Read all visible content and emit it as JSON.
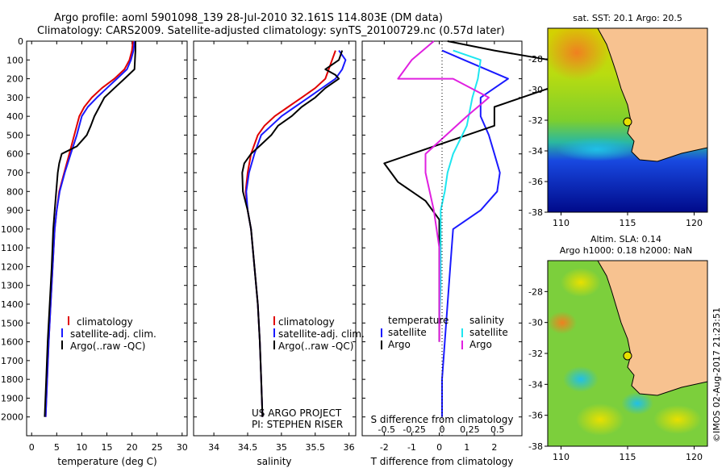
{
  "header": {
    "line1": "Argo profile: aoml 5901098_139 28-Jul-2010 32.161S 114.803E (DM data)",
    "line2": "Climatology: CARS2009. Satellite-adjusted climatology: synTS_20100729.nc (0.57d later)"
  },
  "colors": {
    "climatology": "#e00000",
    "satellite": "#1a1aff",
    "argo": "#000000",
    "sat_salinity": "#1ee6f0",
    "argo_salinity": "#e020e0",
    "land": "#f7c290"
  },
  "chart_data": [
    {
      "type": "line",
      "xlabel": "temperature (deg C)",
      "ylabel": "",
      "xlim": [
        -1,
        31
      ],
      "ylim": [
        2100,
        0
      ],
      "xticks": [
        0,
        5,
        10,
        15,
        20,
        25,
        30
      ],
      "yticks": [
        0,
        100,
        200,
        300,
        400,
        500,
        600,
        700,
        800,
        900,
        1000,
        1100,
        1200,
        1300,
        1400,
        1500,
        1600,
        1700,
        1800,
        1900,
        2000
      ],
      "legend": [
        "climatology",
        "satellite-adj. clim.",
        "Argo(..raw -QC)"
      ],
      "series": [
        {
          "name": "climatology",
          "color": "#e00000",
          "points": [
            [
              20.2,
              0
            ],
            [
              20,
              50
            ],
            [
              19.5,
              100
            ],
            [
              18.5,
              150
            ],
            [
              16.5,
              200
            ],
            [
              14,
              250
            ],
            [
              12,
              300
            ],
            [
              10.5,
              350
            ],
            [
              9.5,
              400
            ],
            [
              8.5,
              500
            ],
            [
              7.5,
              600
            ],
            [
              6.5,
              700
            ],
            [
              5.5,
              800
            ],
            [
              5,
              900
            ],
            [
              4.6,
              1000
            ],
            [
              4.2,
              1200
            ],
            [
              3.8,
              1400
            ],
            [
              3.4,
              1600
            ],
            [
              3.1,
              1800
            ],
            [
              2.8,
              2000
            ]
          ]
        },
        {
          "name": "satellite-adj. clim.",
          "color": "#1a1aff",
          "points": [
            [
              20.5,
              0
            ],
            [
              20.3,
              50
            ],
            [
              19.8,
              100
            ],
            [
              19,
              150
            ],
            [
              17,
              200
            ],
            [
              15,
              250
            ],
            [
              13,
              300
            ],
            [
              11.2,
              350
            ],
            [
              10,
              400
            ],
            [
              9,
              500
            ],
            [
              7.8,
              600
            ],
            [
              6.6,
              700
            ],
            [
              5.6,
              800
            ],
            [
              5,
              900
            ],
            [
              4.6,
              1000
            ],
            [
              4.2,
              1200
            ],
            [
              3.8,
              1400
            ],
            [
              3.4,
              1600
            ],
            [
              3.1,
              1800
            ],
            [
              2.8,
              2000
            ]
          ]
        },
        {
          "name": "Argo(..raw -QC)",
          "color": "#000000",
          "points": [
            [
              20.7,
              0
            ],
            [
              20.7,
              50
            ],
            [
              20.6,
              100
            ],
            [
              20.5,
              150
            ],
            [
              18.5,
              200
            ],
            [
              16.5,
              250
            ],
            [
              14.5,
              300
            ],
            [
              13.5,
              350
            ],
            [
              12.5,
              400
            ],
            [
              11.8,
              450
            ],
            [
              11,
              500
            ],
            [
              9,
              560
            ],
            [
              6,
              600
            ],
            [
              5.5,
              650
            ],
            [
              5.2,
              700
            ],
            [
              4.9,
              800
            ],
            [
              4.6,
              900
            ],
            [
              4.3,
              1000
            ],
            [
              4,
              1200
            ],
            [
              3.6,
              1400
            ],
            [
              3.2,
              1600
            ],
            [
              2.9,
              1800
            ],
            [
              2.6,
              2000
            ]
          ]
        }
      ]
    },
    {
      "type": "line",
      "xlabel": "salinity",
      "ylabel": "",
      "xlim": [
        33.7,
        36.1
      ],
      "ylim": [
        2100,
        0
      ],
      "xticks": [
        34,
        34.5,
        35,
        35.5,
        36
      ],
      "xticklabels": [
        "34",
        "34.5",
        "35",
        "35.5",
        "36"
      ],
      "legend": [
        "climatology",
        "satellite-adj. clim.",
        "Argo(..raw -QC)"
      ],
      "annotation": [
        "US ARGO PROJECT",
        "PI: STEPHEN RISER"
      ],
      "series": [
        {
          "name": "climatology",
          "color": "#e00000",
          "points": [
            [
              35.8,
              50
            ],
            [
              35.75,
              100
            ],
            [
              35.7,
              150
            ],
            [
              35.65,
              200
            ],
            [
              35.5,
              250
            ],
            [
              35.3,
              300
            ],
            [
              35.1,
              350
            ],
            [
              34.9,
              400
            ],
            [
              34.75,
              450
            ],
            [
              34.65,
              500
            ],
            [
              34.55,
              600
            ],
            [
              34.5,
              700
            ],
            [
              34.47,
              800
            ],
            [
              34.5,
              900
            ],
            [
              34.55,
              1000
            ],
            [
              34.6,
              1200
            ],
            [
              34.65,
              1400
            ],
            [
              34.68,
              1600
            ],
            [
              34.7,
              1800
            ],
            [
              34.72,
              2000
            ]
          ]
        },
        {
          "name": "satellite-adj. clim.",
          "color": "#1a1aff",
          "points": [
            [
              35.85,
              50
            ],
            [
              35.95,
              100
            ],
            [
              35.9,
              150
            ],
            [
              35.8,
              200
            ],
            [
              35.6,
              250
            ],
            [
              35.4,
              300
            ],
            [
              35.2,
              350
            ],
            [
              35.0,
              400
            ],
            [
              34.85,
              450
            ],
            [
              34.7,
              500
            ],
            [
              34.6,
              600
            ],
            [
              34.52,
              700
            ],
            [
              34.48,
              800
            ],
            [
              34.5,
              900
            ],
            [
              34.55,
              1000
            ],
            [
              34.6,
              1200
            ],
            [
              34.65,
              1400
            ],
            [
              34.68,
              1600
            ],
            [
              34.7,
              1800
            ],
            [
              34.72,
              2000
            ]
          ]
        },
        {
          "name": "Argo(..raw -QC)",
          "color": "#000000",
          "points": [
            [
              35.9,
              50
            ],
            [
              35.85,
              100
            ],
            [
              35.65,
              150
            ],
            [
              35.8,
              180
            ],
            [
              35.85,
              200
            ],
            [
              35.65,
              250
            ],
            [
              35.5,
              300
            ],
            [
              35.3,
              350
            ],
            [
              35.15,
              400
            ],
            [
              34.95,
              450
            ],
            [
              34.85,
              500
            ],
            [
              34.7,
              550
            ],
            [
              34.55,
              600
            ],
            [
              34.45,
              650
            ],
            [
              34.42,
              700
            ],
            [
              34.43,
              800
            ],
            [
              34.5,
              900
            ],
            [
              34.55,
              1000
            ],
            [
              34.6,
              1200
            ],
            [
              34.65,
              1400
            ],
            [
              34.68,
              1600
            ],
            [
              34.7,
              1800
            ],
            [
              34.72,
              2000
            ]
          ]
        }
      ]
    },
    {
      "type": "line",
      "xlabel": "T difference from climatology",
      "x2label": "S difference from climatology",
      "xlim": [
        -2.8,
        3.0
      ],
      "ylim": [
        2100,
        0
      ],
      "xticks": [
        -2,
        -1,
        0,
        1,
        2
      ],
      "x2ticks": [
        -0.5,
        -0.25,
        0,
        0.25,
        0.5
      ],
      "x2ticklabels": [
        "-0.5",
        "-0.25",
        "0",
        "0.25",
        "0.5"
      ],
      "legend_titles": [
        "temperature",
        "salinity"
      ],
      "legend": [
        "satellite",
        "Argo",
        "satellite",
        "Argo"
      ],
      "series": [
        {
          "name": "satellite",
          "quantity": "temperature",
          "color": "#1a1aff",
          "points": [
            [
              0.1,
              50
            ],
            [
              0.9,
              100
            ],
            [
              2.5,
              200
            ],
            [
              1.5,
              300
            ],
            [
              1.5,
              400
            ],
            [
              1.8,
              500
            ],
            [
              2,
              600
            ],
            [
              2.2,
              700
            ],
            [
              2.1,
              800
            ],
            [
              1.5,
              900
            ],
            [
              0.5,
              1000
            ],
            [
              0.4,
              1200
            ],
            [
              0.3,
              1400
            ],
            [
              0.2,
              1600
            ],
            [
              0.1,
              1800
            ],
            [
              0.1,
              2000
            ]
          ]
        },
        {
          "name": "Argo",
          "quantity": "temperature",
          "color": "#000000",
          "points": [
            [
              0.3,
              0
            ],
            [
              2,
              50
            ],
            [
              4,
              100
            ],
            [
              4,
              200
            ],
            [
              4,
              250
            ],
            [
              2,
              350
            ],
            [
              2,
              450
            ],
            [
              -2,
              650
            ],
            [
              -1.5,
              750
            ],
            [
              -0.5,
              850
            ],
            [
              0,
              950
            ],
            [
              0,
              1100
            ],
            [
              0,
              1300
            ],
            [
              0,
              1500
            ],
            [
              0,
              1600
            ]
          ]
        },
        {
          "name": "satellite",
          "quantity": "salinity",
          "color": "#1ee6f0",
          "points": [
            [
              0.5,
              50
            ],
            [
              1.5,
              100
            ],
            [
              1.4,
              200
            ],
            [
              1.2,
              300
            ],
            [
              1,
              450
            ],
            [
              0.5,
              600
            ],
            [
              0.3,
              700
            ],
            [
              0.2,
              800
            ],
            [
              0.05,
              900
            ],
            [
              0.05,
              1100
            ],
            [
              0.05,
              1300
            ],
            [
              0,
              1500
            ]
          ]
        },
        {
          "name": "Argo",
          "quantity": "salinity",
          "color": "#e020e0",
          "points": [
            [
              -0.2,
              0
            ],
            [
              -1,
              100
            ],
            [
              -1.5,
              200
            ],
            [
              0.5,
              200
            ],
            [
              1.8,
              300
            ],
            [
              1,
              400
            ],
            [
              -0.5,
              600
            ],
            [
              -0.5,
              700
            ],
            [
              -0.2,
              900
            ],
            [
              0,
              1100
            ],
            [
              0,
              1300
            ],
            [
              0,
              1500
            ],
            [
              0,
              1600
            ]
          ]
        }
      ]
    },
    {
      "type": "heatmap",
      "title": "sat. SST: 20.1  Argo: 20.5",
      "xlim": [
        109,
        121
      ],
      "ylim": [
        -38,
        -26
      ],
      "xticks": [
        110,
        115,
        120
      ],
      "yticks": [
        -28,
        -30,
        -32,
        -34,
        -36,
        -38
      ],
      "marker": {
        "lon": 114.8,
        "lat": -32.16
      }
    },
    {
      "type": "heatmap",
      "title": "Altim. SLA: 0.14",
      "subtitle": "Argo h1000: 0.18  h2000: NaN",
      "xlim": [
        109,
        121
      ],
      "ylim": [
        -38,
        -26
      ],
      "xticks": [
        110,
        115,
        120
      ],
      "yticks": [
        -28,
        -30,
        -32,
        -34,
        -36,
        -38
      ],
      "marker": {
        "lon": 114.8,
        "lat": -32.16
      }
    }
  ],
  "footer": {
    "credit": "©IMOS 02-Aug-2017 21:23:51"
  }
}
